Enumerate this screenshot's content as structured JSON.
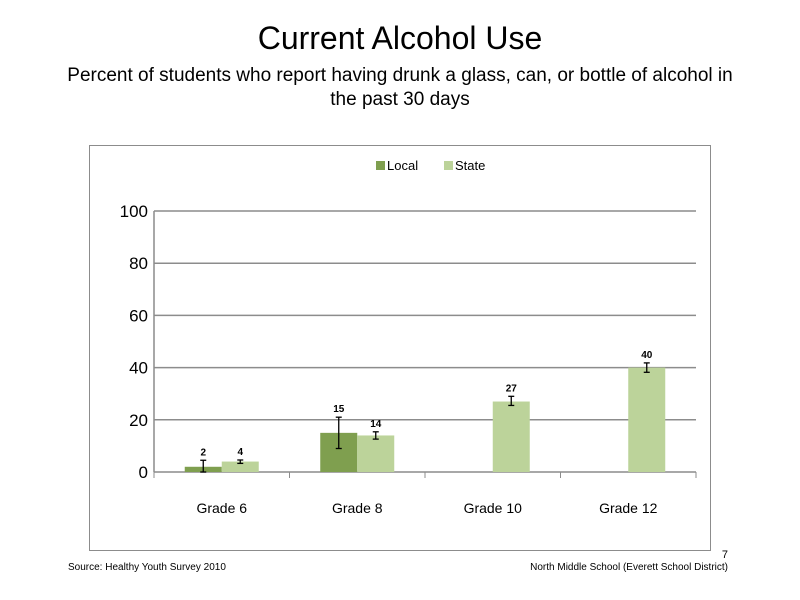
{
  "slide": {
    "title": "Current Alcohol Use",
    "subtitle": "Percent of students who report having drunk  a glass, can, or bottle of alcohol in the past 30 days",
    "source": "Source: Healthy Youth Survey 2010",
    "footer": "North Middle  School (Everett School District)",
    "page_number": "7"
  },
  "chart_data": {
    "type": "bar",
    "categories": [
      "Grade 6",
      "Grade 8",
      "Grade 10",
      "Grade 12"
    ],
    "series": [
      {
        "name": "Local",
        "color": "#7f9f4f",
        "values": [
          2,
          15,
          null,
          null
        ],
        "labels": [
          "2",
          "15",
          "",
          ""
        ],
        "error_low": [
          0,
          9,
          null,
          null
        ],
        "error_high": [
          4.5,
          21,
          null,
          null
        ]
      },
      {
        "name": "State",
        "color": "#bcd39a",
        "values": [
          4,
          14,
          27,
          40
        ],
        "labels": [
          "4",
          "14",
          "27",
          "40"
        ],
        "error_low": [
          3.3,
          12.6,
          25.5,
          38.2
        ],
        "error_high": [
          4.6,
          15.4,
          29.0,
          41.8
        ]
      }
    ],
    "ylim": [
      0,
      100
    ],
    "yticks": [
      0,
      20,
      40,
      60,
      80,
      100
    ],
    "grid": true,
    "legend_position": "top-center"
  }
}
